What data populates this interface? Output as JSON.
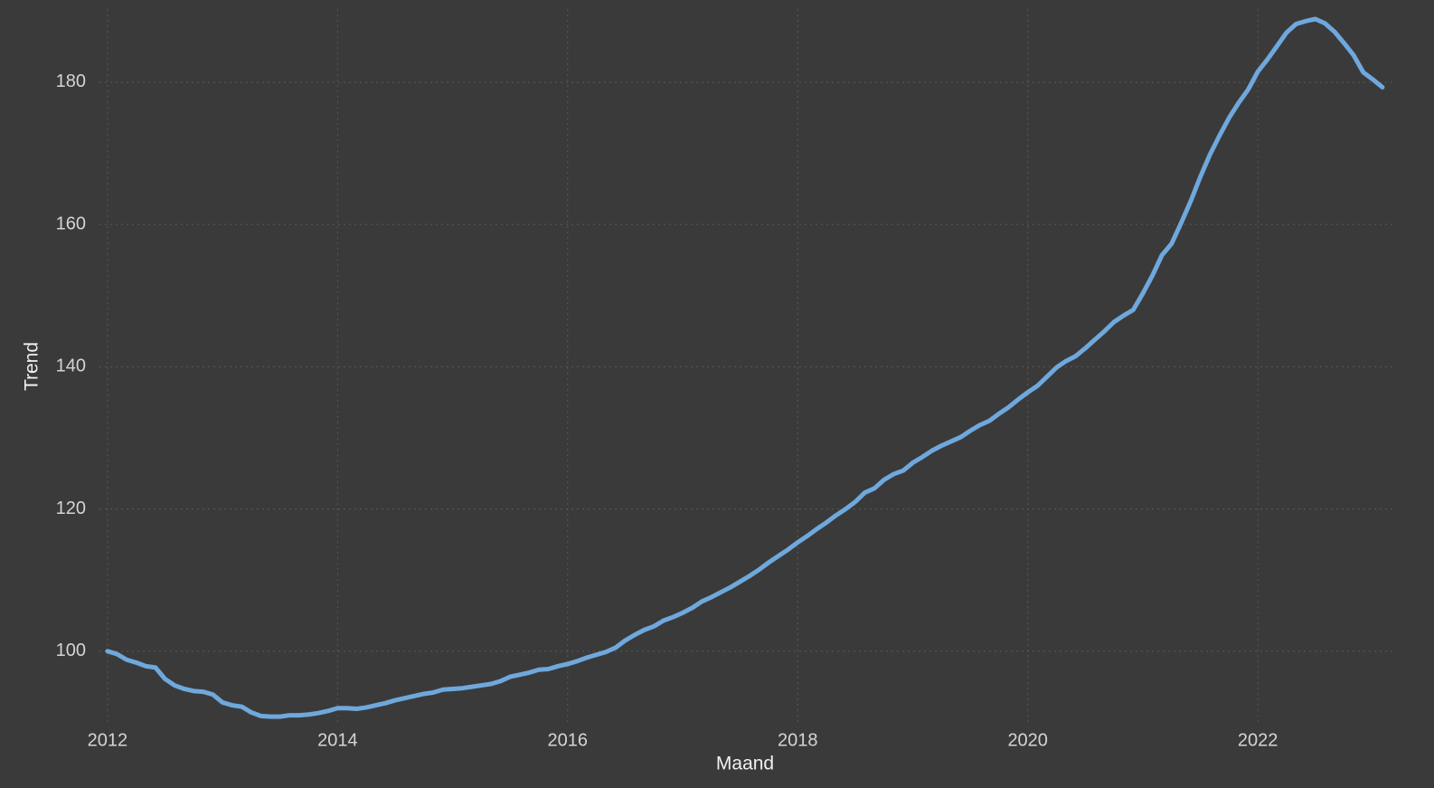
{
  "chart_data": {
    "type": "line",
    "x_label": "Maand",
    "y_label": "Trend",
    "x": [
      2012,
      2012.083,
      2012.167,
      2012.25,
      2012.333,
      2012.417,
      2012.5,
      2012.583,
      2012.667,
      2012.75,
      2012.833,
      2012.917,
      2013,
      2013.083,
      2013.167,
      2013.25,
      2013.333,
      2013.417,
      2013.5,
      2013.583,
      2013.667,
      2013.75,
      2013.833,
      2013.917,
      2014,
      2014.083,
      2014.167,
      2014.25,
      2014.333,
      2014.417,
      2014.5,
      2014.583,
      2014.667,
      2014.75,
      2014.833,
      2014.917,
      2015,
      2015.083,
      2015.167,
      2015.25,
      2015.333,
      2015.417,
      2015.5,
      2015.583,
      2015.667,
      2015.75,
      2015.833,
      2015.917,
      2016,
      2016.083,
      2016.167,
      2016.25,
      2016.333,
      2016.417,
      2016.5,
      2016.583,
      2016.667,
      2016.75,
      2016.833,
      2016.917,
      2017,
      2017.083,
      2017.167,
      2017.25,
      2017.333,
      2017.417,
      2017.5,
      2017.583,
      2017.667,
      2017.75,
      2017.833,
      2017.917,
      2018,
      2018.083,
      2018.167,
      2018.25,
      2018.333,
      2018.417,
      2018.5,
      2018.583,
      2018.667,
      2018.75,
      2018.833,
      2018.917,
      2019,
      2019.083,
      2019.167,
      2019.25,
      2019.333,
      2019.417,
      2019.5,
      2019.583,
      2019.667,
      2019.75,
      2019.833,
      2019.917,
      2020,
      2020.083,
      2020.167,
      2020.25,
      2020.333,
      2020.417,
      2020.5,
      2020.583,
      2020.667,
      2020.75,
      2020.833,
      2020.917,
      2021,
      2021.083,
      2021.167,
      2021.25,
      2021.333,
      2021.417,
      2021.5,
      2021.583,
      2021.667,
      2021.75,
      2021.833,
      2021.917,
      2022,
      2022.083,
      2022.167,
      2022.25,
      2022.333,
      2022.417,
      2022.5,
      2022.583,
      2022.667,
      2022.75,
      2022.833,
      2022.917,
      2023,
      2023.083
    ],
    "series": [
      {
        "color": "#6fa8dc",
        "values": [
          100,
          99.6,
          98.8,
          98.4,
          97.9,
          97.7,
          96.1,
          95.2,
          94.7,
          94.4,
          94.3,
          93.9,
          92.8,
          92.4,
          92.2,
          91.4,
          90.9,
          90.8,
          90.8,
          91.0,
          91.0,
          91.1,
          91.3,
          91.6,
          92.0,
          92.0,
          91.9,
          92.1,
          92.4,
          92.7,
          93.1,
          93.4,
          93.7,
          94.0,
          94.2,
          94.6,
          94.7,
          94.8,
          95.0,
          95.2,
          95.4,
          95.8,
          96.4,
          96.7,
          97.0,
          97.4,
          97.5,
          97.9,
          98.2,
          98.6,
          99.1,
          99.5,
          99.9,
          100.5,
          101.5,
          102.3,
          103.0,
          103.5,
          104.3,
          104.8,
          105.4,
          106.1,
          107.0,
          107.6,
          108.3,
          109.0,
          109.8,
          110.6,
          111.5,
          112.5,
          113.4,
          114.3,
          115.3,
          116.2,
          117.2,
          118.1,
          119.1,
          120.0,
          121.0,
          122.3,
          122.9,
          124.1,
          124.9,
          125.4,
          126.5,
          127.3,
          128.2,
          128.9,
          129.5,
          130.1,
          131.0,
          131.8,
          132.4,
          133.4,
          134.3,
          135.4,
          136.4,
          137.3,
          138.6,
          139.9,
          140.8,
          141.5,
          142.6,
          143.8,
          145.0,
          146.3,
          147.2,
          148.0,
          150.3,
          152.8,
          155.7,
          157.3,
          160.2,
          163.3,
          166.7,
          169.8,
          172.5,
          175.0,
          177.1,
          179.0,
          181.5,
          183.2,
          185.1,
          187.0,
          188.2,
          188.6,
          188.9,
          188.3,
          187.1,
          185.5,
          183.8,
          181.4,
          180.4,
          179.3
        ]
      }
    ],
    "xlim": [
      2011.93,
      2023.17
    ],
    "xticks": [
      2012,
      2014,
      2016,
      2018,
      2020,
      2022
    ],
    "ylim": [
      89.8,
      190.3
    ],
    "yticks": [
      100,
      120,
      140,
      160,
      180
    ],
    "grid": true
  }
}
